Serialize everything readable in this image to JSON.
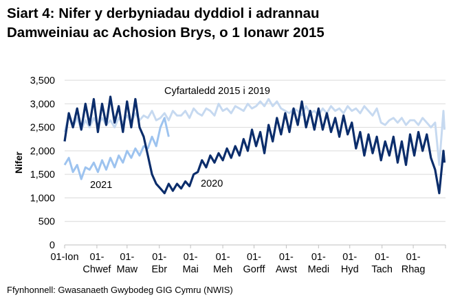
{
  "title_line1": "Siart 4: Nifer y derbyniadau dyddiol i adrannau",
  "title_line2": "Damweiniau ac Achosion Brys, o 1 Ionawr 2015",
  "source": "Ffynhonnell: Gwasanaeth Gwybodeg GIG Cymru (NWIS)",
  "chart_data": {
    "type": "line",
    "title": "Siart 4: Nifer y derbyniadau dyddiol i adrannau Damweiniau ac Achosion Brys, o 1 Ionawr 2015",
    "ylabel": "Nifer",
    "xlabel": "",
    "ylim": [
      0,
      3500
    ],
    "yticks": [
      "0",
      "500",
      "1,000",
      "1,500",
      "2,000",
      "2,500",
      "3,000",
      "3,500"
    ],
    "xticks": [
      [
        "01-Ion",
        ""
      ],
      [
        "01-",
        "Chwef"
      ],
      [
        "01-",
        "Maw"
      ],
      [
        "01-",
        "Ebr"
      ],
      [
        "01-",
        "Mai"
      ],
      [
        "01-",
        "Meh"
      ],
      [
        "01-",
        "Gorff"
      ],
      [
        "01-",
        "Awst"
      ],
      [
        "01-",
        "Medi"
      ],
      [
        "01-",
        "Hyd"
      ],
      [
        "01-",
        "Tach"
      ],
      [
        "01-",
        "Rhag"
      ]
    ],
    "grid": true,
    "legend": "none (series labelled directly on chart)",
    "x_dates": [
      "01-01",
      "01-05",
      "01-09",
      "01-13",
      "01-17",
      "01-21",
      "01-25",
      "01-29",
      "02-02",
      "02-06",
      "02-10",
      "02-14",
      "02-18",
      "02-22",
      "02-26",
      "03-01",
      "03-05",
      "03-09",
      "03-13",
      "03-17",
      "03-21",
      "03-25",
      "03-29",
      "04-02",
      "04-06",
      "04-10",
      "04-14",
      "04-18",
      "04-22",
      "04-26",
      "04-30",
      "05-04",
      "05-08",
      "05-12",
      "05-16",
      "05-20",
      "05-24",
      "05-28",
      "06-01",
      "06-05",
      "06-09",
      "06-13",
      "06-17",
      "06-21",
      "06-25",
      "06-29",
      "07-03",
      "07-07",
      "07-11",
      "07-15",
      "07-19",
      "07-23",
      "07-27",
      "07-31",
      "08-04",
      "08-08",
      "08-12",
      "08-16",
      "08-20",
      "08-24",
      "08-28",
      "09-01",
      "09-05",
      "09-09",
      "09-13",
      "09-17",
      "09-21",
      "09-25",
      "09-29",
      "10-03",
      "10-07",
      "10-11",
      "10-15",
      "10-19",
      "10-23",
      "10-27",
      "10-31",
      "11-04",
      "11-08",
      "11-12",
      "11-16",
      "11-20",
      "11-24",
      "11-28",
      "12-02",
      "12-06",
      "12-10",
      "12-14",
      "12-18",
      "12-22",
      "12-26",
      "12-30",
      "12-31"
    ],
    "series": [
      {
        "name": "Cyfartaledd 2015 i 2019",
        "color": "#c6d9f0",
        "values": [
          2400,
          2750,
          2500,
          2700,
          2450,
          2650,
          2500,
          2700,
          2550,
          2700,
          2550,
          2650,
          2500,
          2700,
          2600,
          2750,
          2600,
          2800,
          2650,
          2750,
          2700,
          2850,
          2650,
          2700,
          2800,
          2650,
          2850,
          2750,
          2750,
          2850,
          2700,
          2900,
          2800,
          2750,
          2900,
          2850,
          2750,
          3000,
          2850,
          2900,
          2800,
          2950,
          2900,
          2850,
          3000,
          2900,
          2950,
          3050,
          2950,
          3100,
          2950,
          3050,
          2900,
          2850,
          2800,
          2900,
          2850,
          2750,
          2950,
          2800,
          2850,
          2750,
          2900,
          2800,
          2950,
          2850,
          2900,
          2800,
          2950,
          2850,
          2900,
          2800,
          2950,
          2850,
          2750,
          2900,
          2600,
          2550,
          2650,
          2700,
          2600,
          2700,
          2550,
          2650,
          2650,
          2550,
          2700,
          2600,
          2500,
          2600,
          1700,
          2850,
          2450
        ]
      },
      {
        "name": "2021",
        "color": "#9dc3ef",
        "values": [
          1700,
          1850,
          1550,
          1700,
          1400,
          1650,
          1600,
          1750,
          1550,
          1800,
          1600,
          1850,
          1650,
          1900,
          1750,
          2000,
          1850,
          2050,
          1900,
          2100,
          2050,
          2300,
          2100,
          2500,
          2700,
          2300
        ]
      },
      {
        "name": "2020",
        "color": "#0b2d6b",
        "values": [
          2200,
          2800,
          2500,
          2900,
          2450,
          3000,
          2550,
          3100,
          2400,
          3000,
          2550,
          3150,
          2600,
          2950,
          2400,
          3050,
          2500,
          3100,
          2500,
          2300,
          1900,
          1500,
          1300,
          1200,
          1100,
          1300,
          1150,
          1300,
          1200,
          1350,
          1250,
          1500,
          1550,
          1800,
          1650,
          1900,
          1750,
          1950,
          1800,
          2050,
          1850,
          2100,
          1900,
          2250,
          2000,
          2450,
          2100,
          2400,
          1950,
          2550,
          2200,
          2700,
          2350,
          2800,
          2400,
          2900,
          2550,
          3050,
          2500,
          2850,
          2450,
          2900,
          2450,
          2800,
          2400,
          2700,
          2300,
          2750,
          2350,
          2600,
          2050,
          2400,
          1900,
          2350,
          1950,
          2300,
          1800,
          2200,
          1900,
          2300,
          1750,
          2200,
          1700,
          2350,
          1900,
          2400,
          2000,
          2350,
          1850,
          1600,
          1100,
          2000,
          1750
        ]
      }
    ]
  }
}
